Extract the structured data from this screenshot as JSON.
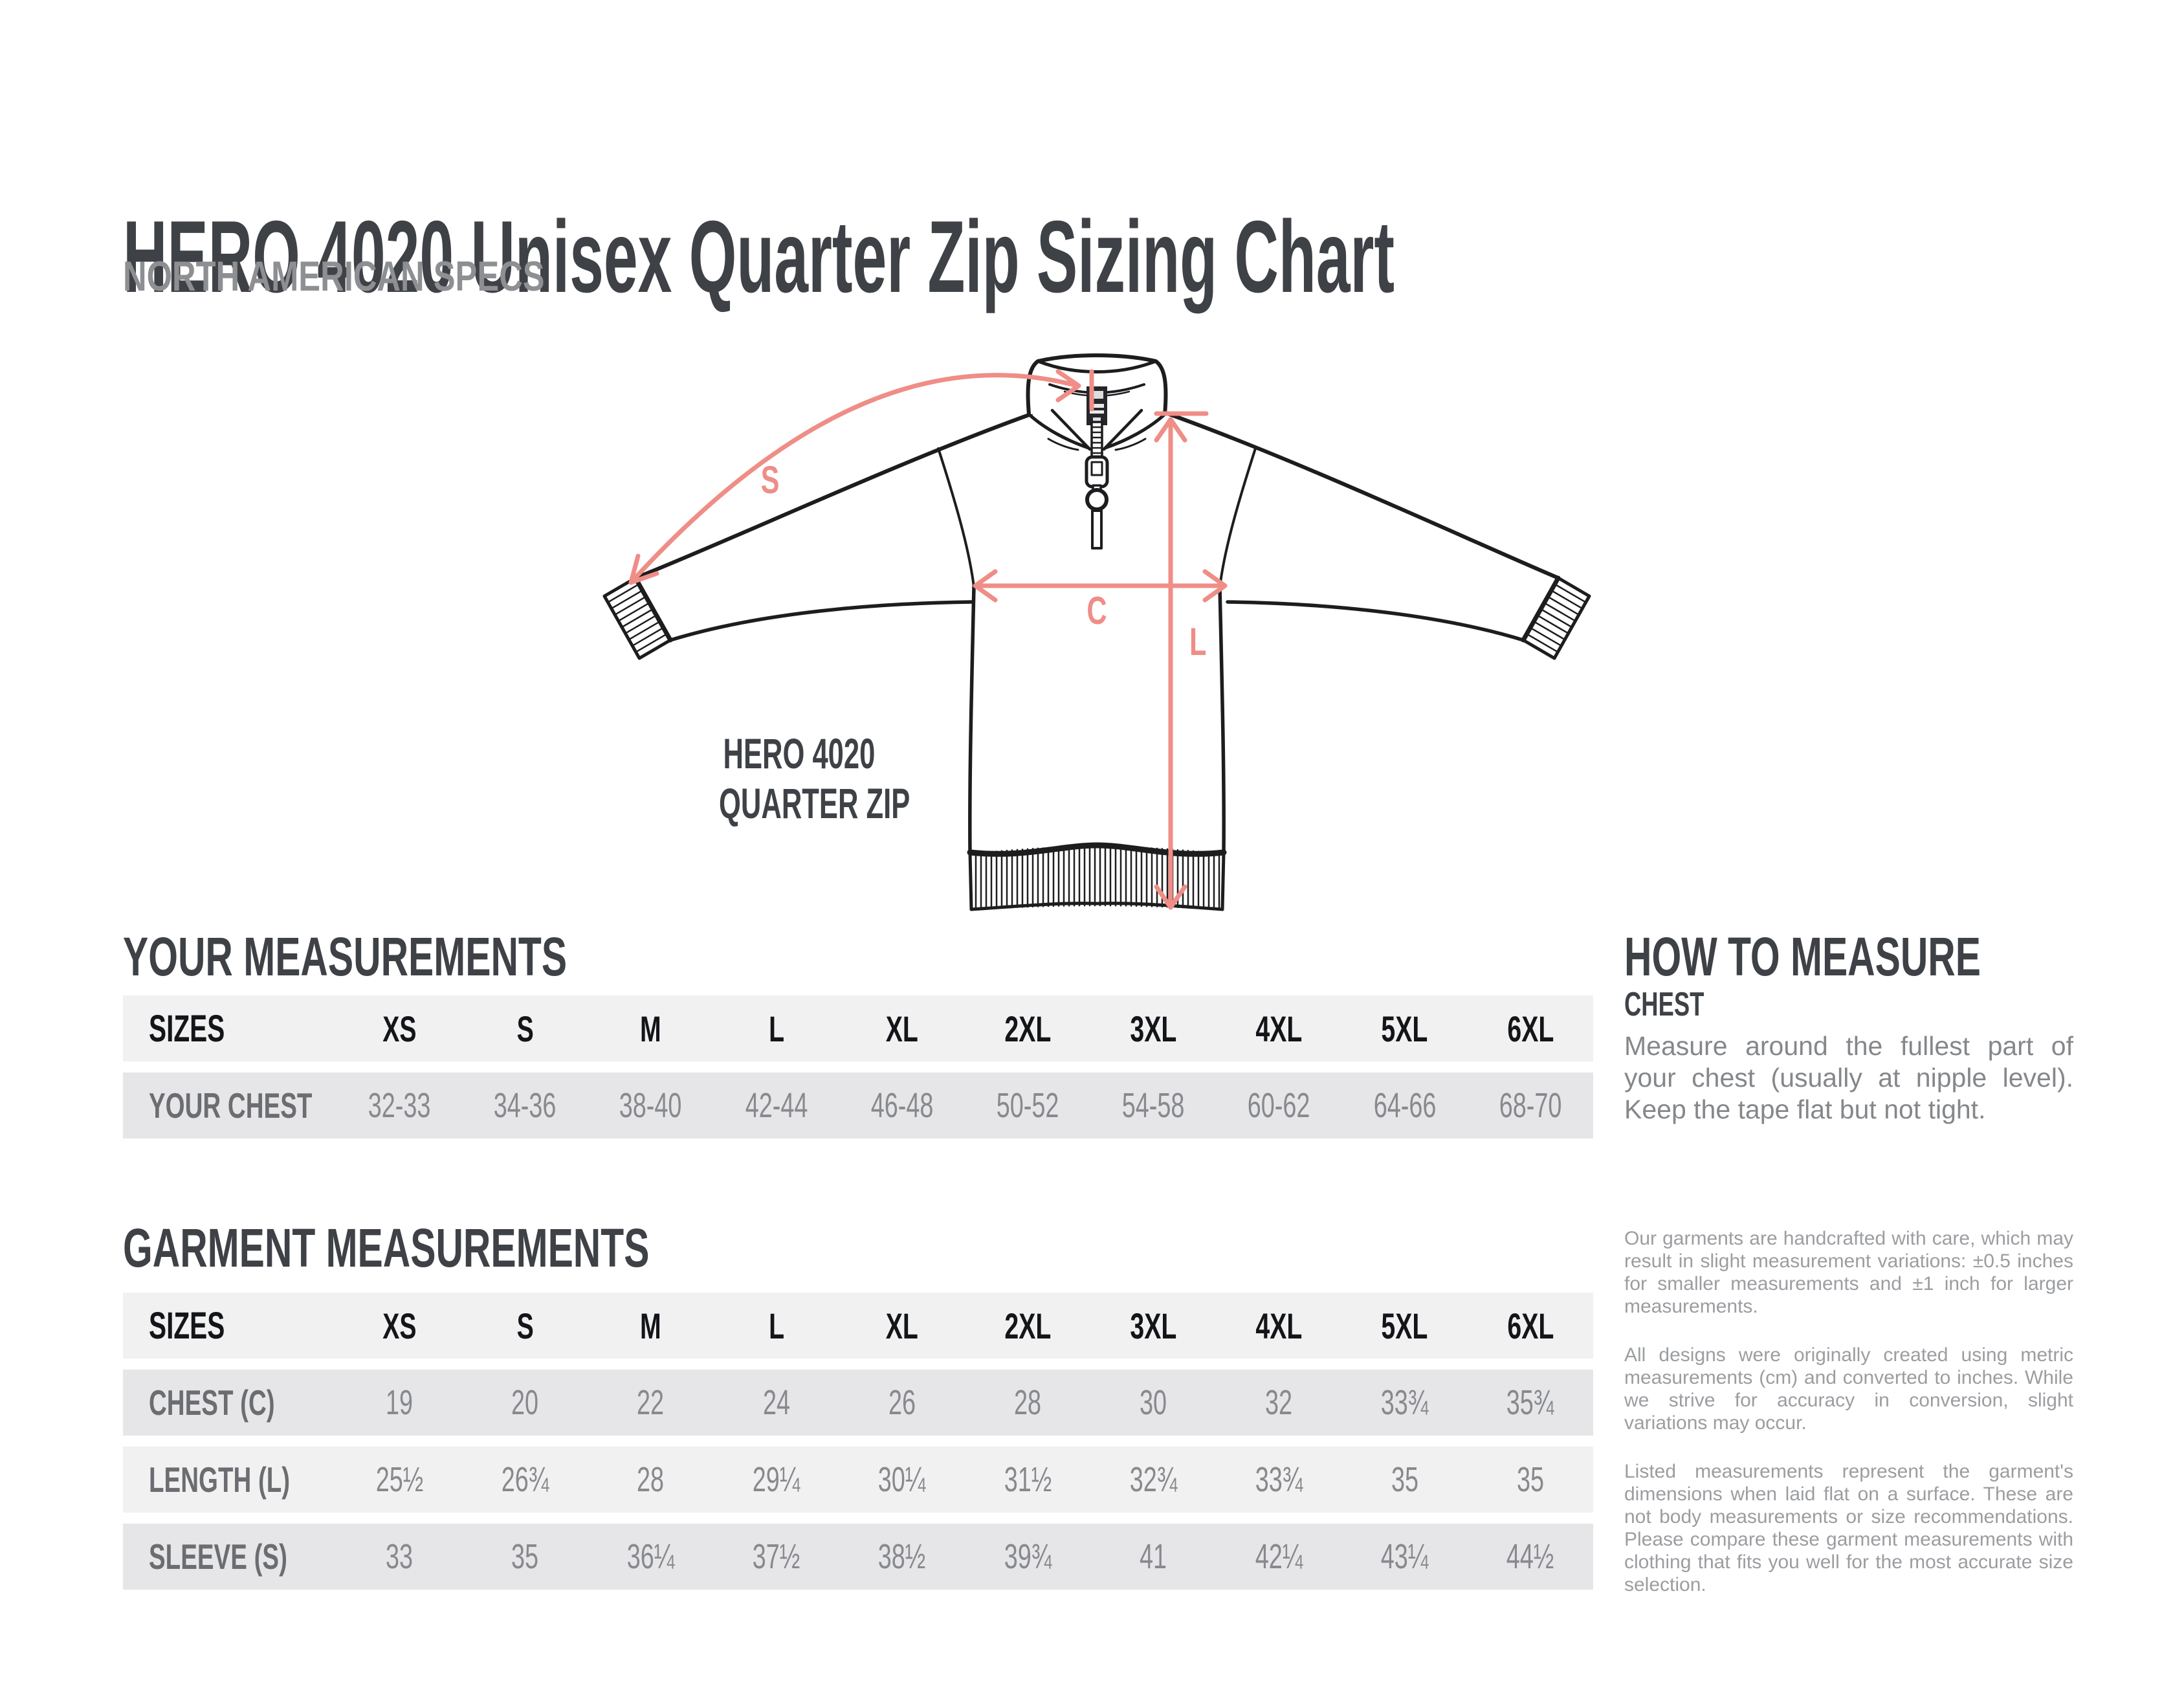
{
  "page": {
    "title": "HERO 4020 Unisex Quarter Zip Sizing Chart",
    "subtitle": "NORTH AMERICAN SPECS"
  },
  "diagram": {
    "label_line1": "HERO 4020",
    "label_line2": "QUARTER ZIP",
    "arrow_labels": {
      "sleeve": "S",
      "chest": "C",
      "length": "L"
    },
    "accent_color": "#EF8D87",
    "line_color": "#1D1D1F"
  },
  "your_measurements": {
    "heading": "YOUR MEASUREMENTS",
    "columns": [
      "SIZES",
      "XS",
      "S",
      "M",
      "L",
      "XL",
      "2XL",
      "3XL",
      "4XL",
      "5XL",
      "6XL"
    ],
    "rows": [
      {
        "label": "YOUR CHEST",
        "values": [
          "32-33",
          "34-36",
          "38-40",
          "42-44",
          "46-48",
          "50-52",
          "54-58",
          "60-62",
          "64-66",
          "68-70"
        ]
      }
    ]
  },
  "garment_measurements": {
    "heading": "GARMENT MEASUREMENTS",
    "columns": [
      "SIZES",
      "XS",
      "S",
      "M",
      "L",
      "XL",
      "2XL",
      "3XL",
      "4XL",
      "5XL",
      "6XL"
    ],
    "rows": [
      {
        "label": "CHEST (C)",
        "values": [
          "19",
          "20",
          "22",
          "24",
          "26",
          "28",
          "30",
          "32",
          "33¾",
          "35¾"
        ]
      },
      {
        "label": "LENGTH (L)",
        "values": [
          "25½",
          "26¾",
          "28",
          "29¼",
          "30¼",
          "31½",
          "32¾",
          "33¾",
          "35",
          "35"
        ]
      },
      {
        "label": "SLEEVE (S)",
        "values": [
          "33",
          "35",
          "36¼",
          "37½",
          "38½",
          "39¾",
          "41",
          "42¼",
          "43¼",
          "44½"
        ]
      }
    ]
  },
  "how_to_measure": {
    "heading": "HOW TO MEASURE",
    "sub_heading": "CHEST",
    "body": "Measure around the fullest part of your chest (usually at nipple level). Keep the tape flat but not tight."
  },
  "notes": {
    "paragraphs": [
      "Our garments are handcrafted with care, which may result in slight measurement variations: ±0.5 inches for smaller measurements and ±1 inch for larger measurements.",
      "All designs were originally created using metric measurements (cm) and converted to inches. While we strive for accuracy in conversion, slight variations may occur.",
      "Listed measurements represent the garment's dimensions when laid flat on a surface. These are not body measurements or size recommendations. Please compare these garment measurements with clothing that fits you well for the most accurate size selection."
    ]
  }
}
